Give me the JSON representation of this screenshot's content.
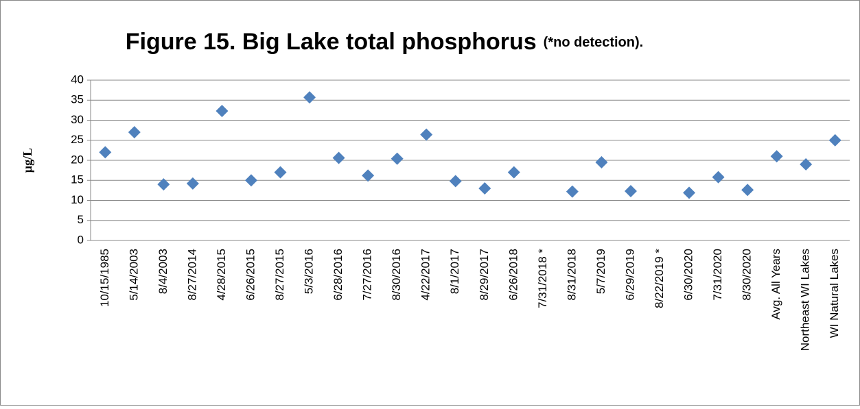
{
  "chart_data": {
    "type": "scatter",
    "title": "Figure 15. Big Lake total phosphorus",
    "title_note": "(*no detection).",
    "y_label": "µg/L",
    "categories": [
      "10/15/1985",
      "5/14/2003",
      "8/4/2003",
      "8/27/2014",
      "4/28/2015",
      "6/26/2015",
      "8/27/2015",
      "5/3/2016",
      "6/28/2016",
      "7/27/2016",
      "8/30/2016",
      "4/22/2017",
      "8/1/2017",
      "8/29/2017",
      "6/26/2018",
      "7/31/2018 *",
      "8/31/2018",
      "5/7/2019",
      "6/29/2019",
      "8/22/2019 *",
      "6/30/2020",
      "7/31/2020",
      "8/30/2020",
      "Avg. All Years",
      "Northeast WI Lakes",
      "WI Natural Lakes"
    ],
    "values": [
      22,
      27,
      14,
      14.2,
      32.3,
      15,
      17,
      35.7,
      20.6,
      16.2,
      20.4,
      26.4,
      14.8,
      13,
      17,
      null,
      12.2,
      19.5,
      12.3,
      null,
      11.9,
      15.8,
      12.6,
      21,
      19,
      25
    ],
    "color": "#4f81bd",
    "ylim": [
      0,
      40
    ],
    "yticks": [
      0,
      5,
      10,
      15,
      20,
      25,
      30,
      35,
      40
    ],
    "grid": true
  }
}
